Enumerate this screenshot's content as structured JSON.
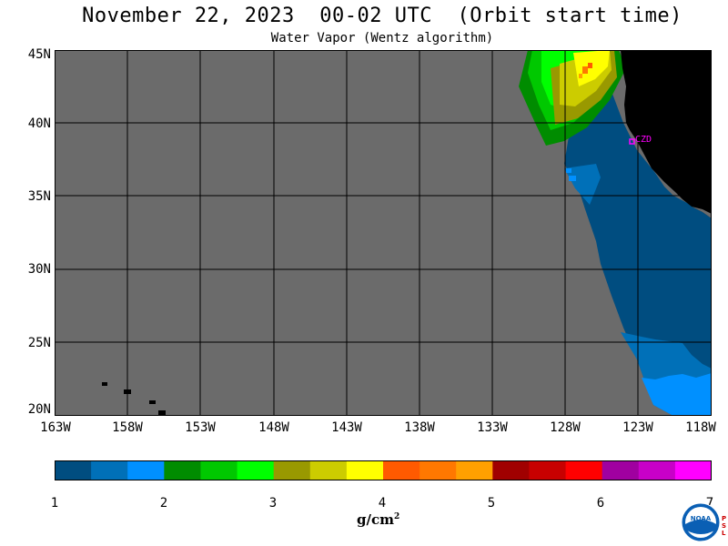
{
  "title": "November 22, 2023  00-02 UTC  (Orbit start time)",
  "subtitle": "Water Vapor (Wentz algorithm)",
  "map": {
    "lat_labels": [
      "45N",
      "40N",
      "35N",
      "30N",
      "25N",
      "20N"
    ],
    "lon_labels": [
      "163W",
      "158W",
      "153W",
      "148W",
      "143W",
      "138W",
      "133W",
      "128W",
      "123W",
      "118W"
    ],
    "lat_range": [
      20,
      45
    ],
    "lon_range": [
      -163,
      -118
    ],
    "station_label": "CZD",
    "colors": {
      "no_data": "#6b6b6b",
      "land": "#000000",
      "station": "#ff00ff",
      "grid": "#000000"
    }
  },
  "colorbar": {
    "ticks": [
      "1",
      "2",
      "3",
      "4",
      "5",
      "6",
      "7"
    ],
    "unit": "g/cm",
    "unit_exp": "2",
    "colors": [
      "#004d80",
      "#0070b8",
      "#0090ff",
      "#008c00",
      "#00c800",
      "#00ff00",
      "#999900",
      "#cccc00",
      "#ffff00",
      "#ff5a00",
      "#ff7800",
      "#ffa000",
      "#a00000",
      "#c80000",
      "#ff0000",
      "#a000a0",
      "#c800c8",
      "#ff00ff"
    ]
  },
  "logo": {
    "text": "NOAA",
    "side_text": [
      "P",
      "S",
      "L"
    ]
  }
}
